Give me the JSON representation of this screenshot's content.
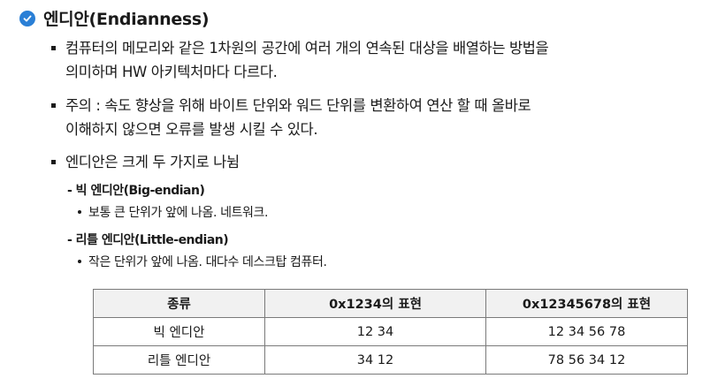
{
  "heading": {
    "icon": "check-circle-icon",
    "text": "엔디안(Endianness)",
    "icon_color": "#2a7fd6"
  },
  "bullets": [
    {
      "lines": [
        "컴퓨터의 메모리와 같은 1차원의 공간에 여러 개의 연속된 대상을 배열하는 방법을",
        "의미하며 HW 아키텍처마다 다르다."
      ]
    },
    {
      "lines": [
        "주의 : 속도 향상을 위해 바이트 단위와 워드 단위를 변환하여 연산 할 때 올바로",
        "이해하지 않으면 오류를 발생 시킬 수 있다."
      ]
    },
    {
      "lines": [
        "엔디안은 크게 두 가지로 나뉨"
      ]
    }
  ],
  "subitems": [
    {
      "title": "- 빅 엔디안(Big-endian)",
      "desc": "보통 큰 단위가 앞에 나옴. 네트워크."
    },
    {
      "title": "- 리틀 엔디안(Little-endian)",
      "desc": "작은 단위가 앞에 나옴. 대다수 데스크탑 컴퓨터."
    }
  ],
  "table": {
    "headers": [
      "종류",
      "0x1234의 표현",
      "0x12345678의 표현"
    ],
    "rows": [
      [
        "빅 엔디안",
        "12 34",
        "12 34 56 78"
      ],
      [
        "리틀 엔디안",
        "34 12",
        "78 56 34 12"
      ]
    ]
  }
}
